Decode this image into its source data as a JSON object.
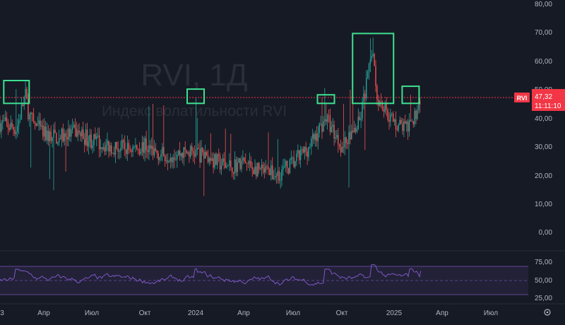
{
  "watermark": {
    "symbol_title": "RVI, 1Д",
    "description": "Индекс волатильности RVI"
  },
  "price_axis": {
    "labels": [
      "80,00",
      "70,00",
      "60,00",
      "50,00",
      "40,00",
      "30,00",
      "20,00",
      "10,00",
      "0,00"
    ]
  },
  "last_price": {
    "symbol_tag": "RVI",
    "value": "47,32",
    "countdown": "11:11:10"
  },
  "oscillator_axis": {
    "labels": [
      "75,00",
      "50,00",
      "25,00"
    ]
  },
  "time_axis": {
    "labels": [
      "3",
      "Апр",
      "Июл",
      "Окт",
      "2024",
      "Апр",
      "Июл",
      "Окт",
      "2025",
      "Апр",
      "Июл"
    ],
    "settings_icon": "gear-icon"
  },
  "colors": {
    "background": "#161a25",
    "up": "#26a69a",
    "down": "#ef5350",
    "highlight_box": "#3ee08f",
    "oscillator_line": "#7e57c2",
    "last_price_tag": "#f23645"
  },
  "chart_data": [
    {
      "type": "candlestick",
      "y_axis_range": [
        0,
        80
      ],
      "x_range": [
        "2023-01",
        "2025-07"
      ],
      "last_value": 47.32,
      "trend": [
        {
          "date": "2023-01",
          "value": 38
        },
        {
          "date": "2023-02",
          "value": 36
        },
        {
          "date": "2023-02-20",
          "value": 48
        },
        {
          "date": "2023-03",
          "value": 40
        },
        {
          "date": "2023-04",
          "value": 34
        },
        {
          "date": "2023-05",
          "value": 33
        },
        {
          "date": "2023-06",
          "value": 35
        },
        {
          "date": "2023-07",
          "value": 32
        },
        {
          "date": "2023-08",
          "value": 30
        },
        {
          "date": "2023-09",
          "value": 29
        },
        {
          "date": "2023-10",
          "value": 30
        },
        {
          "date": "2023-11",
          "value": 27
        },
        {
          "date": "2024-01",
          "value": 28
        },
        {
          "date": "2024-02",
          "value": 25
        },
        {
          "date": "2024-03",
          "value": 23
        },
        {
          "date": "2024-04",
          "value": 24
        },
        {
          "date": "2024-05",
          "value": 21
        },
        {
          "date": "2024-06",
          "value": 20
        },
        {
          "date": "2024-07",
          "value": 24
        },
        {
          "date": "2024-08",
          "value": 30
        },
        {
          "date": "2024-09",
          "value": 40
        },
        {
          "date": "2024-10",
          "value": 30
        },
        {
          "date": "2024-11",
          "value": 38
        },
        {
          "date": "2024-11-25",
          "value": 65
        },
        {
          "date": "2024-12",
          "value": 48
        },
        {
          "date": "2025-01",
          "value": 38
        },
        {
          "date": "2025-02",
          "value": 36
        },
        {
          "date": "2025-02-20",
          "value": 47.32
        }
      ],
      "highlighted_spikes": [
        {
          "date": "2023-02",
          "value": 50
        },
        {
          "date": "2024-01",
          "value": 47
        },
        {
          "date": "2024-09",
          "value": 45
        },
        {
          "date": "2024-11-25",
          "value": 68
        },
        {
          "date": "2025-02",
          "value": 48
        }
      ]
    },
    {
      "type": "line",
      "y_axis_range": [
        25,
        75
      ],
      "band": [
        30,
        70
      ],
      "midline": 50
    }
  ]
}
